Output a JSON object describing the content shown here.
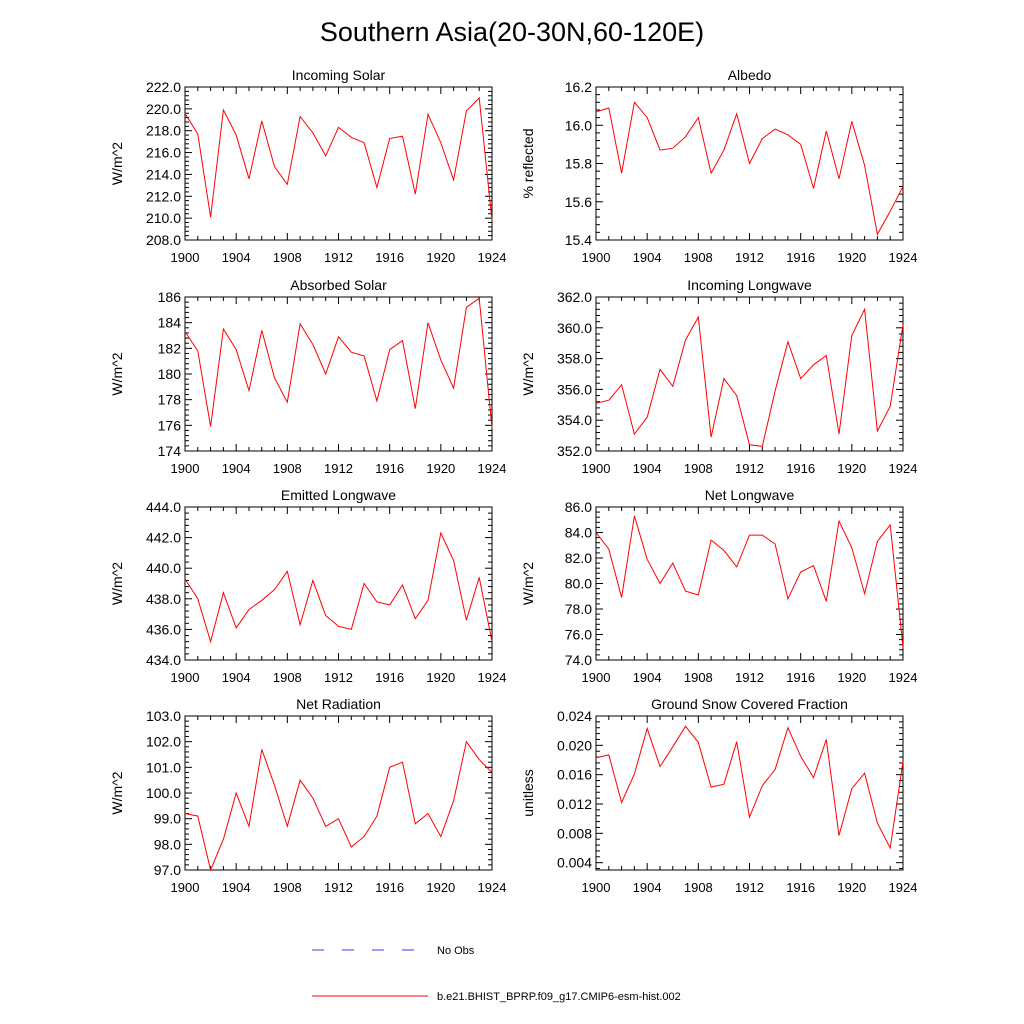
{
  "page": {
    "title": "Southern Asia(20-30N,60-120E)"
  },
  "legend": {
    "obs_label": "No Obs",
    "model_label": "b.e21.BHIST_BPRP.f09_g17.CMIP6-esm-hist.002",
    "obs_color": "#3a3af0",
    "model_color": "#ff0000"
  },
  "chart_data": [
    {
      "type": "line",
      "title": "Incoming Solar",
      "xlabel": "",
      "ylabel": "W/m^2",
      "xlim": [
        1900,
        1924
      ],
      "ylim": [
        208.0,
        222.0
      ],
      "xticks": [
        1900,
        1904,
        1908,
        1912,
        1916,
        1920,
        1924
      ],
      "yticks": [
        208.0,
        210.0,
        212.0,
        214.0,
        216.0,
        218.0,
        220.0,
        222.0
      ],
      "ytick_labels": [
        "208.0",
        "210.0",
        "212.0",
        "214.0",
        "216.0",
        "218.0",
        "220.0",
        "222.0"
      ],
      "minor_per_major": 4,
      "color": "#ff0000",
      "x": [
        1900,
        1901,
        1902,
        1903,
        1904,
        1905,
        1906,
        1907,
        1908,
        1909,
        1910,
        1911,
        1912,
        1913,
        1914,
        1915,
        1916,
        1917,
        1918,
        1919,
        1920,
        1921,
        1922,
        1923,
        1924
      ],
      "values": [
        219.6,
        217.7,
        210.1,
        219.9,
        217.6,
        213.6,
        218.9,
        214.7,
        213.1,
        219.3,
        217.8,
        215.7,
        218.3,
        217.4,
        216.9,
        212.8,
        217.3,
        217.5,
        212.2,
        219.5,
        216.9,
        213.5,
        219.8,
        221.0,
        209.8
      ]
    },
    {
      "type": "line",
      "title": "Albedo",
      "xlabel": "",
      "ylabel": "% reflected",
      "xlim": [
        1900,
        1924
      ],
      "ylim": [
        15.4,
        16.2
      ],
      "xticks": [
        1900,
        1904,
        1908,
        1912,
        1916,
        1920,
        1924
      ],
      "yticks": [
        15.4,
        15.6,
        15.8,
        16.0,
        16.2
      ],
      "ytick_labels": [
        "15.4",
        "15.6",
        "15.8",
        "16.0",
        "16.2"
      ],
      "minor_per_major": 4,
      "color": "#ff0000",
      "x": [
        1900,
        1901,
        1902,
        1903,
        1904,
        1905,
        1906,
        1907,
        1908,
        1909,
        1910,
        1911,
        1912,
        1913,
        1914,
        1915,
        1916,
        1917,
        1918,
        1919,
        1920,
        1921,
        1922,
        1923,
        1924
      ],
      "values": [
        16.07,
        16.09,
        15.75,
        16.12,
        16.04,
        15.87,
        15.88,
        15.94,
        16.04,
        15.75,
        15.87,
        16.06,
        15.8,
        15.93,
        15.98,
        15.95,
        15.9,
        15.67,
        15.97,
        15.72,
        16.02,
        15.79,
        15.43,
        15.55,
        15.68
      ]
    },
    {
      "type": "line",
      "title": "Absorbed Solar",
      "xlabel": "",
      "ylabel": "W/m^2",
      "xlim": [
        1900,
        1924
      ],
      "ylim": [
        174,
        186
      ],
      "xticks": [
        1900,
        1904,
        1908,
        1912,
        1916,
        1920,
        1924
      ],
      "yticks": [
        174,
        176,
        178,
        180,
        182,
        184,
        186
      ],
      "ytick_labels": [
        "174",
        "176",
        "178",
        "180",
        "182",
        "184",
        "186"
      ],
      "minor_per_major": 4,
      "color": "#ff0000",
      "x": [
        1900,
        1901,
        1902,
        1903,
        1904,
        1905,
        1906,
        1907,
        1908,
        1909,
        1910,
        1911,
        1912,
        1913,
        1914,
        1915,
        1916,
        1917,
        1918,
        1919,
        1920,
        1921,
        1922,
        1923,
        1924
      ],
      "values": [
        183.3,
        181.8,
        175.9,
        183.5,
        181.9,
        178.7,
        183.4,
        179.7,
        177.8,
        183.9,
        182.3,
        180.0,
        182.9,
        181.7,
        181.4,
        177.9,
        181.9,
        182.6,
        177.3,
        184.0,
        181.1,
        178.9,
        185.2,
        185.9,
        175.8
      ]
    },
    {
      "type": "line",
      "title": "Incoming Longwave",
      "xlabel": "",
      "ylabel": "W/m^2",
      "xlim": [
        1900,
        1924
      ],
      "ylim": [
        352.0,
        362.0
      ],
      "xticks": [
        1900,
        1904,
        1908,
        1912,
        1916,
        1920,
        1924
      ],
      "yticks": [
        352.0,
        354.0,
        356.0,
        358.0,
        360.0,
        362.0
      ],
      "ytick_labels": [
        "352.0",
        "354.0",
        "356.0",
        "358.0",
        "360.0",
        "362.0"
      ],
      "minor_per_major": 4,
      "color": "#ff0000",
      "x": [
        1900,
        1901,
        1902,
        1903,
        1904,
        1905,
        1906,
        1907,
        1908,
        1909,
        1910,
        1911,
        1912,
        1913,
        1914,
        1915,
        1916,
        1917,
        1918,
        1919,
        1920,
        1921,
        1922,
        1923,
        1924
      ],
      "values": [
        355.1,
        355.3,
        356.3,
        353.1,
        354.2,
        357.3,
        356.2,
        359.2,
        360.7,
        352.9,
        356.7,
        355.6,
        352.4,
        352.3,
        355.9,
        359.1,
        356.7,
        357.6,
        358.2,
        353.1,
        359.5,
        361.2,
        353.3,
        354.9,
        360.2
      ]
    },
    {
      "type": "line",
      "title": "Emitted Longwave",
      "xlabel": "",
      "ylabel": "W/m^2",
      "xlim": [
        1900,
        1924
      ],
      "ylim": [
        434.0,
        444.0
      ],
      "xticks": [
        1900,
        1904,
        1908,
        1912,
        1916,
        1920,
        1924
      ],
      "yticks": [
        434.0,
        436.0,
        438.0,
        440.0,
        442.0,
        444.0
      ],
      "ytick_labels": [
        "434.0",
        "436.0",
        "438.0",
        "440.0",
        "442.0",
        "444.0"
      ],
      "minor_per_major": 4,
      "color": "#ff0000",
      "x": [
        1900,
        1901,
        1902,
        1903,
        1904,
        1905,
        1906,
        1907,
        1908,
        1909,
        1910,
        1911,
        1912,
        1913,
        1914,
        1915,
        1916,
        1917,
        1918,
        1919,
        1920,
        1921,
        1922,
        1923,
        1924
      ],
      "values": [
        439.3,
        438.0,
        435.2,
        438.4,
        436.1,
        437.3,
        437.9,
        438.6,
        439.8,
        436.3,
        439.2,
        436.9,
        436.2,
        436.0,
        439.0,
        437.8,
        437.6,
        438.9,
        436.7,
        437.9,
        442.3,
        440.5,
        436.6,
        439.4,
        435.2
      ]
    },
    {
      "type": "line",
      "title": "Net Longwave",
      "xlabel": "",
      "ylabel": "W/m^2",
      "xlim": [
        1900,
        1924
      ],
      "ylim": [
        74.0,
        86.0
      ],
      "xticks": [
        1900,
        1904,
        1908,
        1912,
        1916,
        1920,
        1924
      ],
      "yticks": [
        74.0,
        76.0,
        78.0,
        80.0,
        82.0,
        84.0,
        86.0
      ],
      "ytick_labels": [
        "74.0",
        "76.0",
        "78.0",
        "80.0",
        "82.0",
        "84.0",
        "86.0"
      ],
      "minor_per_major": 4,
      "color": "#ff0000",
      "x": [
        1900,
        1901,
        1902,
        1903,
        1904,
        1905,
        1906,
        1907,
        1908,
        1909,
        1910,
        1911,
        1912,
        1913,
        1914,
        1915,
        1916,
        1917,
        1918,
        1919,
        1920,
        1921,
        1922,
        1923,
        1924
      ],
      "values": [
        84.0,
        82.7,
        78.9,
        85.3,
        81.9,
        80.0,
        81.6,
        79.4,
        79.1,
        83.4,
        82.6,
        81.3,
        83.8,
        83.8,
        83.1,
        78.8,
        80.9,
        81.4,
        78.6,
        84.9,
        82.8,
        79.2,
        83.3,
        84.6,
        75.0
      ]
    },
    {
      "type": "line",
      "title": "Net Radiation",
      "xlabel": "",
      "ylabel": "W/m^2",
      "xlim": [
        1900,
        1924
      ],
      "ylim": [
        97.0,
        103.0
      ],
      "xticks": [
        1900,
        1904,
        1908,
        1912,
        1916,
        1920,
        1924
      ],
      "yticks": [
        97.0,
        98.0,
        99.0,
        100.0,
        101.0,
        102.0,
        103.0
      ],
      "ytick_labels": [
        "97.0",
        "98.0",
        "99.0",
        "100.0",
        "101.0",
        "102.0",
        "103.0"
      ],
      "minor_per_major": 4,
      "color": "#ff0000",
      "x": [
        1900,
        1901,
        1902,
        1903,
        1904,
        1905,
        1906,
        1907,
        1908,
        1909,
        1910,
        1911,
        1912,
        1913,
        1914,
        1915,
        1916,
        1917,
        1918,
        1919,
        1920,
        1921,
        1922,
        1923,
        1924
      ],
      "values": [
        99.2,
        99.1,
        97.0,
        98.2,
        100.0,
        98.7,
        101.7,
        100.3,
        98.7,
        100.5,
        99.8,
        98.7,
        99.0,
        97.9,
        98.3,
        99.1,
        101.0,
        101.2,
        98.8,
        99.2,
        98.3,
        99.7,
        102.0,
        101.3,
        100.8
      ]
    },
    {
      "type": "line",
      "title": "Ground Snow Covered Fraction",
      "xlabel": "",
      "ylabel": "unitless",
      "xlim": [
        1900,
        1924
      ],
      "ylim": [
        0.003,
        0.024
      ],
      "xticks": [
        1900,
        1904,
        1908,
        1912,
        1916,
        1920,
        1924
      ],
      "yticks": [
        0.004,
        0.008,
        0.012,
        0.016,
        0.02,
        0.024
      ],
      "ytick_labels": [
        "0.004",
        "0.008",
        "0.012",
        "0.016",
        "0.020",
        "0.024"
      ],
      "minor_per_major": 4,
      "color": "#ff0000",
      "x": [
        1900,
        1901,
        1902,
        1903,
        1904,
        1905,
        1906,
        1907,
        1908,
        1909,
        1910,
        1911,
        1912,
        1913,
        1914,
        1915,
        1916,
        1917,
        1918,
        1919,
        1920,
        1921,
        1922,
        1923,
        1924
      ],
      "values": [
        0.0183,
        0.0187,
        0.0122,
        0.0161,
        0.0223,
        0.0171,
        0.0198,
        0.0226,
        0.0204,
        0.0143,
        0.0147,
        0.0205,
        0.0102,
        0.0145,
        0.0167,
        0.0224,
        0.0185,
        0.0156,
        0.0208,
        0.0077,
        0.0141,
        0.0162,
        0.0094,
        0.006,
        0.0178
      ]
    }
  ]
}
